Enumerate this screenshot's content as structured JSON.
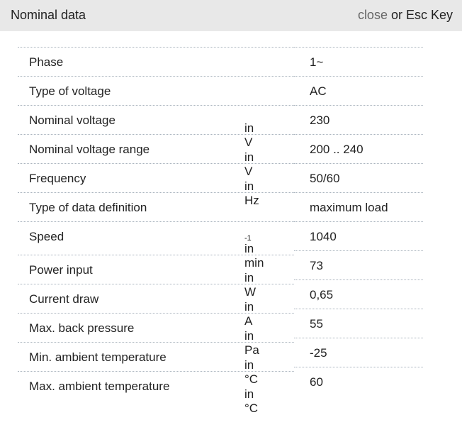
{
  "header": {
    "title": "Nominal data",
    "close_label": "close",
    "close_suffix": " or Esc Key"
  },
  "rows": [
    {
      "label": "Phase",
      "unit": "",
      "value": "1~"
    },
    {
      "label": "Type of voltage",
      "unit": "",
      "value": "AC"
    },
    {
      "label": "Nominal voltage",
      "unit": "in V",
      "value": "230"
    },
    {
      "label": "Nominal voltage range",
      "unit": "in V",
      "value": "200 .. 240"
    },
    {
      "label": "Frequency",
      "unit": "in Hz",
      "value": "50/60"
    },
    {
      "label": "Type of data definition",
      "unit": "",
      "value": "maximum load"
    },
    {
      "label": "Speed",
      "unit": "in min",
      "unit_sup": "-1",
      "value": "1040"
    },
    {
      "label": "Power input",
      "unit": "in W",
      "value": "73"
    },
    {
      "label": "Current draw",
      "unit": "in A",
      "value": "0,65"
    },
    {
      "label": "Max. back pressure",
      "unit": "in Pa",
      "value": "55"
    },
    {
      "label": "Min. ambient temperature",
      "unit": "in °C",
      "value": "-25"
    },
    {
      "label": "Max. ambient temperature",
      "unit": "in °C",
      "value": "60"
    }
  ]
}
